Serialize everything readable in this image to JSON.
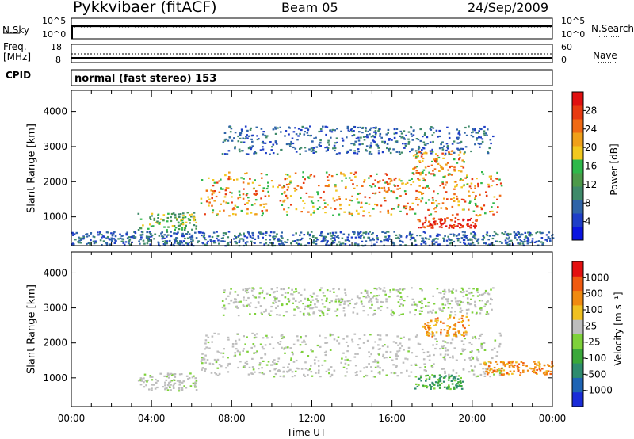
{
  "header": {
    "station": "Pykkvibaer (fitACF)",
    "beam": "Beam 05",
    "date": "24/Sep/2009"
  },
  "top_panels": {
    "nsky_label": "N.Sky",
    "nsky_ticks": [
      "10^5",
      "10^0"
    ],
    "nsearch_label": "N.Search",
    "nsearch_ticks": [
      "10^5",
      "10^0"
    ],
    "freq_label": "Freq.",
    "freq_unit": "[MHz]",
    "freq_ticks": [
      "18",
      "8"
    ],
    "nave_label": "Nave",
    "nave_ticks": [
      "60",
      "0"
    ],
    "cpid_label": "CPID",
    "cpid_value": "normal (fast stereo) 153"
  },
  "chart_data": [
    {
      "type": "heatmap",
      "name": "power",
      "ylabel": "Slant Range [km]",
      "xlabel": "Time UT",
      "xlim": [
        0,
        24
      ],
      "ylim": [
        180,
        4600
      ],
      "yticks": [
        "4000",
        "3000",
        "2000",
        "1000"
      ],
      "yticks_values": [
        4000,
        3000,
        2000,
        1000
      ],
      "colorbar": {
        "label": "Power [dB]",
        "ticks": [
          "28",
          "24",
          "20",
          "16",
          "12",
          "8",
          "4"
        ],
        "colors": [
          "#0a14e0",
          "#1e3ec8",
          "#2f64a8",
          "#3f8a6a",
          "#4d9a4a",
          "#2fb84a",
          "#f2c81e",
          "#f0a01a",
          "#f06a14",
          "#e83a10",
          "#e01010"
        ]
      },
      "bands": [
        {
          "t0": 3.3,
          "t1": 6.2,
          "r0": 650,
          "r1": 1150,
          "level": "medium"
        },
        {
          "t0": 6.4,
          "t1": 21.5,
          "r0": 1050,
          "r1": 2300,
          "level": "high"
        },
        {
          "t0": 17.2,
          "t1": 20.2,
          "r0": 700,
          "r1": 1000,
          "level": "peak"
        },
        {
          "t0": 17.0,
          "t1": 19.6,
          "r0": 2200,
          "r1": 2900,
          "level": "high"
        },
        {
          "t0": 7.5,
          "t1": 21.0,
          "r0": 2800,
          "r1": 3600,
          "level": "low"
        },
        {
          "t0": 0.0,
          "t1": 24.0,
          "r0": 200,
          "r1": 600,
          "level": "low"
        }
      ]
    },
    {
      "type": "heatmap",
      "name": "velocity",
      "ylabel": "Slant Range [km]",
      "xlabel": "Time UT",
      "xlim": [
        0,
        24
      ],
      "ylim": [
        180,
        4600
      ],
      "yticks": [
        "4000",
        "3000",
        "2000",
        "1000"
      ],
      "yticks_values": [
        4000,
        3000,
        2000,
        1000
      ],
      "colorbar": {
        "label": "Velocity [m s⁻¹]",
        "ticks": [
          "1000",
          "500",
          "100",
          "25",
          "-25",
          "-100",
          "-500",
          "-1000"
        ],
        "colors": [
          "#1a2cd8",
          "#1e64b4",
          "#2e8c6e",
          "#3aa83a",
          "#7ed13a",
          "#bdbdbd",
          "#f0c020",
          "#f08a10",
          "#f05a10",
          "#e41010"
        ]
      },
      "bands": [
        {
          "t0": 6.4,
          "t1": 21.5,
          "r0": 1050,
          "r1": 2300,
          "level": "gray"
        },
        {
          "t0": 3.3,
          "t1": 6.2,
          "r0": 650,
          "r1": 1150,
          "level": "gray"
        },
        {
          "t0": 17.5,
          "t1": 19.8,
          "r0": 2200,
          "r1": 2800,
          "level": "orange"
        },
        {
          "t0": 20.5,
          "t1": 24.0,
          "r0": 1100,
          "r1": 1500,
          "level": "orange"
        },
        {
          "t0": 17.0,
          "t1": 19.5,
          "r0": 700,
          "r1": 1100,
          "level": "green"
        },
        {
          "t0": 7.5,
          "t1": 21.0,
          "r0": 2800,
          "r1": 3600,
          "level": "faint"
        }
      ]
    }
  ],
  "time_axis": {
    "ticks": [
      "00:00",
      "04:00",
      "08:00",
      "12:00",
      "16:00",
      "20:00",
      "00:00"
    ],
    "label": "Time UT"
  }
}
